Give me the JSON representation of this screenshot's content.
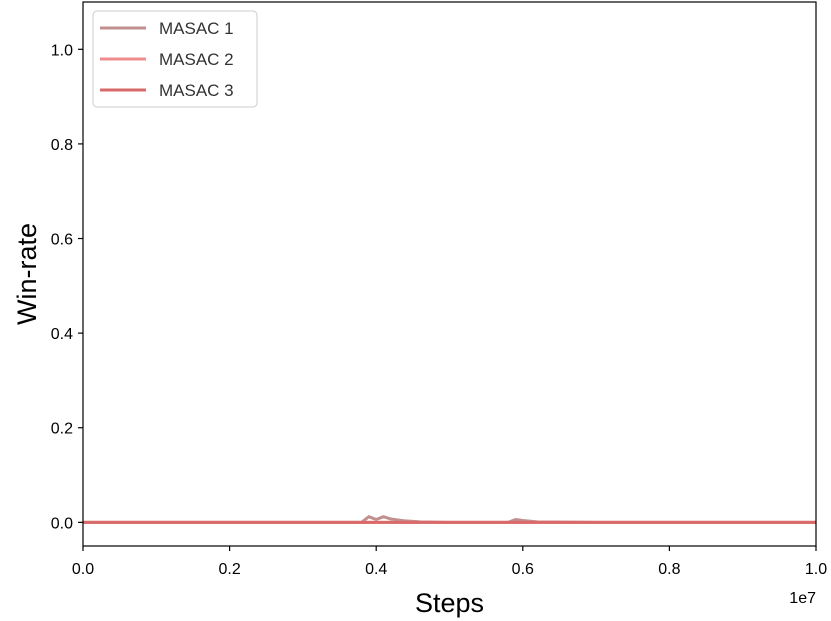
{
  "chart_data": {
    "type": "line",
    "xlabel": "Steps",
    "ylabel": "Win-rate",
    "x_offset_label": "1e7",
    "xlim": [
      0,
      1.0
    ],
    "ylim": [
      -0.05,
      1.1
    ],
    "x_ticks": [
      0.0,
      0.2,
      0.4,
      0.6,
      0.8,
      1.0
    ],
    "x_tick_labels": [
      "0.0",
      "0.2",
      "0.4",
      "0.6",
      "0.8",
      "1.0"
    ],
    "y_ticks": [
      0.0,
      0.2,
      0.4,
      0.6,
      0.8,
      1.0
    ],
    "y_tick_labels": [
      "0.0",
      "0.2",
      "0.4",
      "0.6",
      "0.8",
      "1.0"
    ],
    "grid": false,
    "legend_placement": "upper-left",
    "series": [
      {
        "name": "MASAC 1",
        "color": "#c09090",
        "x": [
          0.0,
          0.3,
          0.38,
          0.39,
          0.4,
          0.41,
          0.42,
          0.44,
          0.46,
          0.5,
          0.58,
          0.59,
          0.6,
          0.62,
          0.7,
          0.8,
          0.9,
          1.0
        ],
        "y": [
          0.0,
          0.0,
          0.0,
          0.012,
          0.006,
          0.012,
          0.007,
          0.003,
          0.001,
          0.0,
          0.0,
          0.006,
          0.004,
          0.001,
          0.0,
          0.0,
          0.0,
          0.0
        ]
      },
      {
        "name": "MASAC 2",
        "color": "#ef8c8c",
        "x": [
          0.0,
          0.2,
          0.4,
          0.6,
          0.8,
          1.0
        ],
        "y": [
          0.0,
          0.0,
          0.0,
          0.0,
          0.0,
          0.0
        ]
      },
      {
        "name": "MASAC 3",
        "color": "#d96a6a",
        "x": [
          0.0,
          0.2,
          0.4,
          0.6,
          0.8,
          1.0
        ],
        "y": [
          0.0,
          0.0,
          0.0,
          0.0,
          0.0,
          0.0
        ]
      }
    ]
  }
}
